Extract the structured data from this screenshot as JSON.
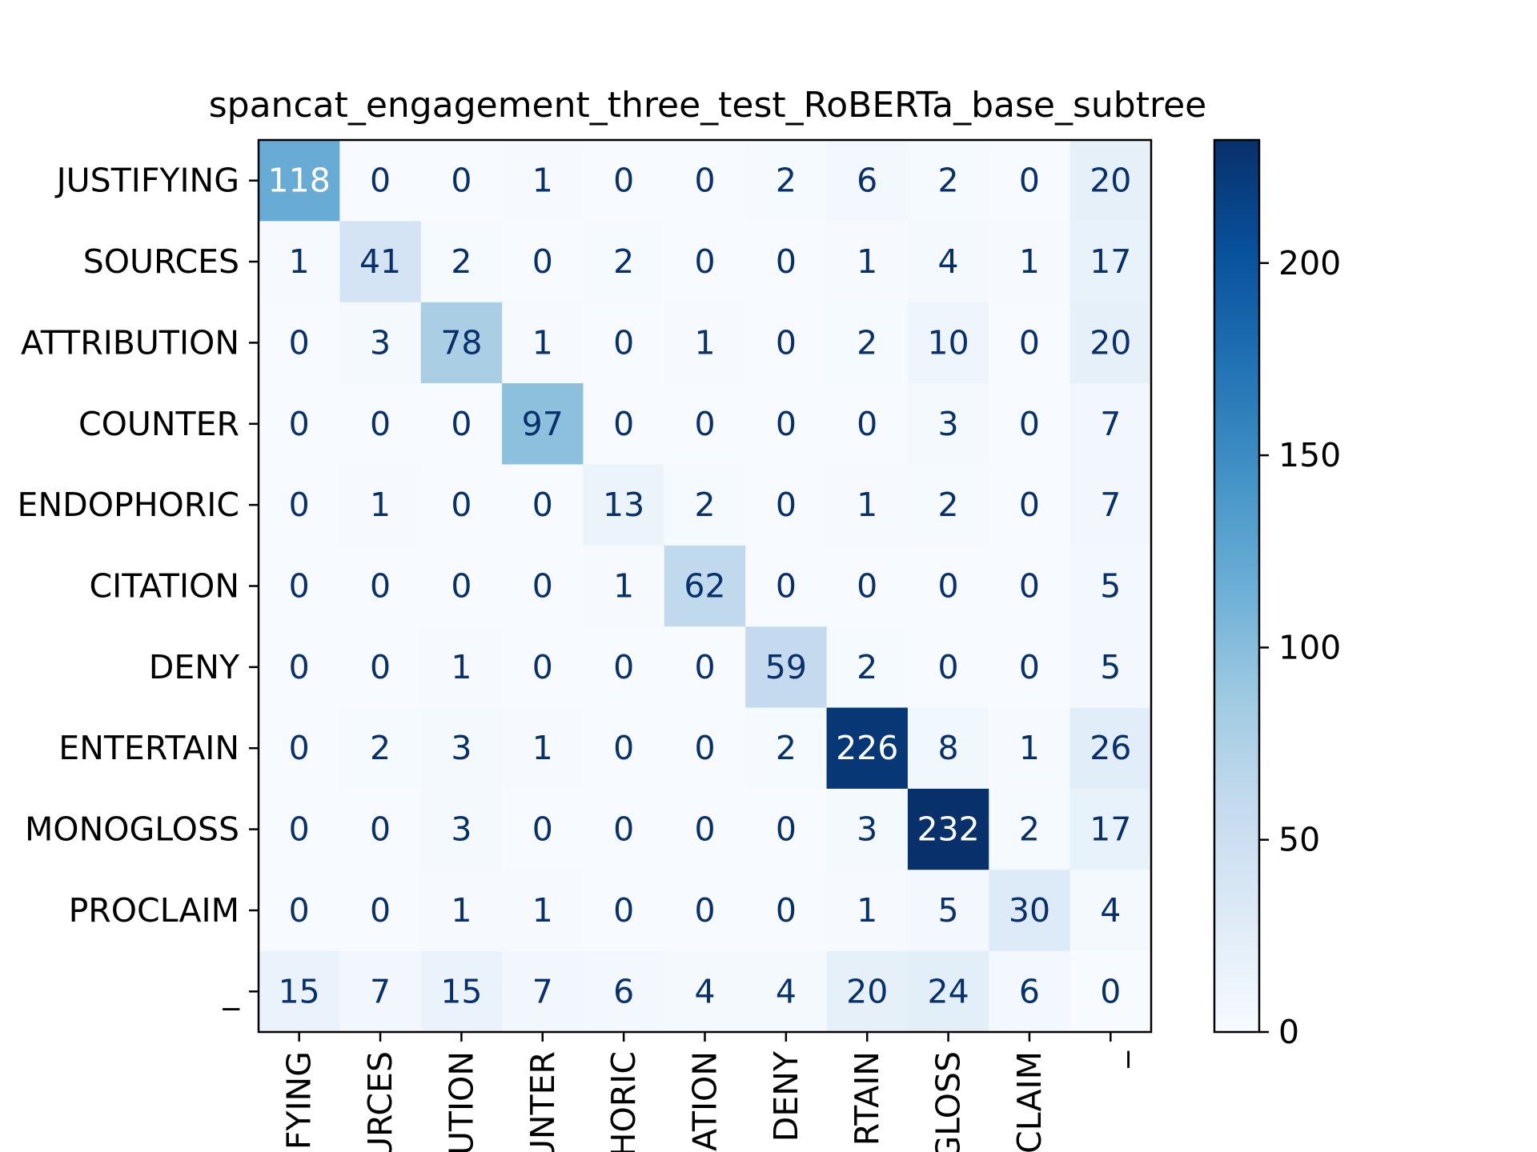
{
  "chart_data": {
    "type": "heatmap",
    "title": "spancat_engagement_three_test_RoBERTa_base_subtree",
    "y_labels": [
      "JUSTIFYING",
      "SOURCES",
      "ATTRIBUTION",
      "COUNTER",
      "ENDOPHORIC",
      "CITATION",
      "DENY",
      "ENTERTAIN",
      "MONOGLOSS",
      "PROCLAIM",
      "_"
    ],
    "x_labels": [
      "IFYING",
      "URCES",
      "UTION",
      "UNTER",
      "HORIC",
      "ATION",
      "DENY",
      "RTAIN",
      "GLOSS",
      "CLAIM",
      "_"
    ],
    "values": [
      [
        118,
        0,
        0,
        1,
        0,
        0,
        2,
        6,
        2,
        0,
        20
      ],
      [
        1,
        41,
        2,
        0,
        2,
        0,
        0,
        1,
        4,
        1,
        17
      ],
      [
        0,
        3,
        78,
        1,
        0,
        1,
        0,
        2,
        10,
        0,
        20
      ],
      [
        0,
        0,
        0,
        97,
        0,
        0,
        0,
        0,
        3,
        0,
        7
      ],
      [
        0,
        1,
        0,
        0,
        13,
        2,
        0,
        1,
        2,
        0,
        7
      ],
      [
        0,
        0,
        0,
        0,
        1,
        62,
        0,
        0,
        0,
        0,
        5
      ],
      [
        0,
        0,
        1,
        0,
        0,
        0,
        59,
        2,
        0,
        0,
        5
      ],
      [
        0,
        2,
        3,
        1,
        0,
        0,
        2,
        226,
        8,
        1,
        26
      ],
      [
        0,
        0,
        3,
        0,
        0,
        0,
        0,
        3,
        232,
        2,
        17
      ],
      [
        0,
        0,
        1,
        1,
        0,
        0,
        0,
        1,
        5,
        30,
        4
      ],
      [
        15,
        7,
        15,
        7,
        6,
        4,
        4,
        20,
        24,
        6,
        0
      ]
    ],
    "colormap": "Blues",
    "vmin": 0,
    "vmax": 232,
    "colorbar_ticks": [
      0,
      50,
      100,
      150,
      200
    ],
    "grid": false
  }
}
